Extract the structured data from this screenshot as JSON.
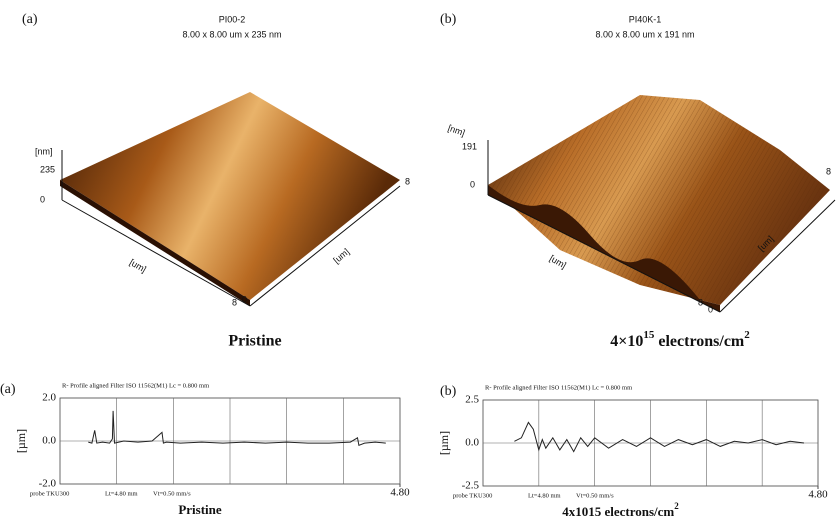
{
  "panels": [
    {
      "label": "(a)",
      "sample": "PI00-2",
      "dims": "8.00 x 8.00 um x 235 nm",
      "z_unit": "[nm]",
      "z_max": "235",
      "z_min": "0",
      "axis_left": "[um]",
      "axis_right": "[um]",
      "corner_left": "8",
      "corner_origin": "0",
      "corner_right": "8",
      "caption": "Pristine"
    },
    {
      "label": "(b)",
      "sample": "PI40K-1",
      "dims": "8.00 x 8.00 um x 191 nm",
      "z_unit": "[nm]",
      "z_max": "191",
      "z_min": "0",
      "axis_left": "[um]",
      "axis_right": "[um]",
      "corner_left": "8",
      "corner_origin": "0",
      "corner_right": "8",
      "caption_parts": {
        "base": "4×10",
        "exp": "15",
        "unit": " electrons/cm",
        "unit_exp": "2"
      }
    }
  ],
  "chart_data": [
    {
      "type": "line",
      "panel_label": "(a)",
      "title": "R- Profile aligned Filter ISO 11562(M1) Lc = 0.800 mm",
      "ylabel": "[µm]",
      "annotations": [
        "probe TKU300",
        "Lt=4.80 mm",
        "Vt=0.50 mm/s"
      ],
      "caption": "Pristine",
      "xlim": [
        0,
        4.8
      ],
      "xticks": [
        {
          "value": 4.8,
          "label": "4.80"
        }
      ],
      "ylim": [
        -2.0,
        2.0
      ],
      "yticks": [
        {
          "value": 2.0,
          "label": "2.0"
        },
        {
          "value": 0.0,
          "label": "0.0"
        },
        {
          "value": -2.0,
          "label": "-2.0"
        }
      ],
      "series": [
        {
          "color": "#222222",
          "x": [
            0.4,
            0.45,
            0.49,
            0.52,
            0.6,
            0.7,
            0.74,
            0.75,
            0.77,
            0.9,
            1.1,
            1.3,
            1.44,
            1.46,
            1.5,
            1.7,
            2.0,
            2.3,
            2.6,
            2.9,
            3.2,
            3.5,
            3.8,
            4.1,
            4.2,
            4.22,
            4.3,
            4.45,
            4.6
          ],
          "values": [
            -0.05,
            -0.1,
            0.5,
            -0.1,
            -0.05,
            -0.1,
            0.1,
            1.4,
            -0.1,
            0.0,
            -0.05,
            0.0,
            0.4,
            -0.1,
            -0.05,
            -0.1,
            -0.05,
            -0.1,
            -0.05,
            -0.1,
            -0.05,
            -0.1,
            -0.1,
            -0.05,
            0.15,
            -0.2,
            -0.1,
            -0.05,
            -0.1
          ]
        }
      ]
    },
    {
      "type": "line",
      "panel_label": "(b)",
      "title": "R- Profile aligned Filter ISO 11562(M1) Lc = 0.800 mm",
      "ylabel": "[µm]",
      "annotations": [
        "probe TKU300",
        "Lt=4.80 mm",
        "Vt=0.50 mm/s"
      ],
      "caption_parts": {
        "base": "4x1015 electrons/cm",
        "exp": "2"
      },
      "xlim": [
        0,
        4.8
      ],
      "xticks": [
        {
          "value": 4.8,
          "label": "4.80"
        }
      ],
      "ylim": [
        -2.5,
        2.5
      ],
      "yticks": [
        {
          "value": 2.5,
          "label": "2.5"
        },
        {
          "value": 0.0,
          "label": "0.0"
        },
        {
          "value": -2.5,
          "label": "-2.5"
        }
      ],
      "series": [
        {
          "color": "#222222",
          "x": [
            0.45,
            0.55,
            0.65,
            0.72,
            0.8,
            0.85,
            0.9,
            1.0,
            1.1,
            1.2,
            1.3,
            1.4,
            1.5,
            1.6,
            1.8,
            2.0,
            2.2,
            2.4,
            2.6,
            2.8,
            3.0,
            3.2,
            3.4,
            3.6,
            3.8,
            4.0,
            4.2,
            4.4,
            4.6
          ],
          "values": [
            0.1,
            0.3,
            1.2,
            0.8,
            -0.4,
            0.2,
            -0.3,
            0.3,
            -0.4,
            0.2,
            -0.5,
            0.3,
            -0.2,
            0.3,
            -0.3,
            0.2,
            -0.2,
            0.3,
            -0.2,
            0.2,
            -0.1,
            0.2,
            -0.2,
            0.1,
            0.0,
            0.2,
            -0.1,
            0.1,
            0.0
          ]
        }
      ]
    }
  ]
}
